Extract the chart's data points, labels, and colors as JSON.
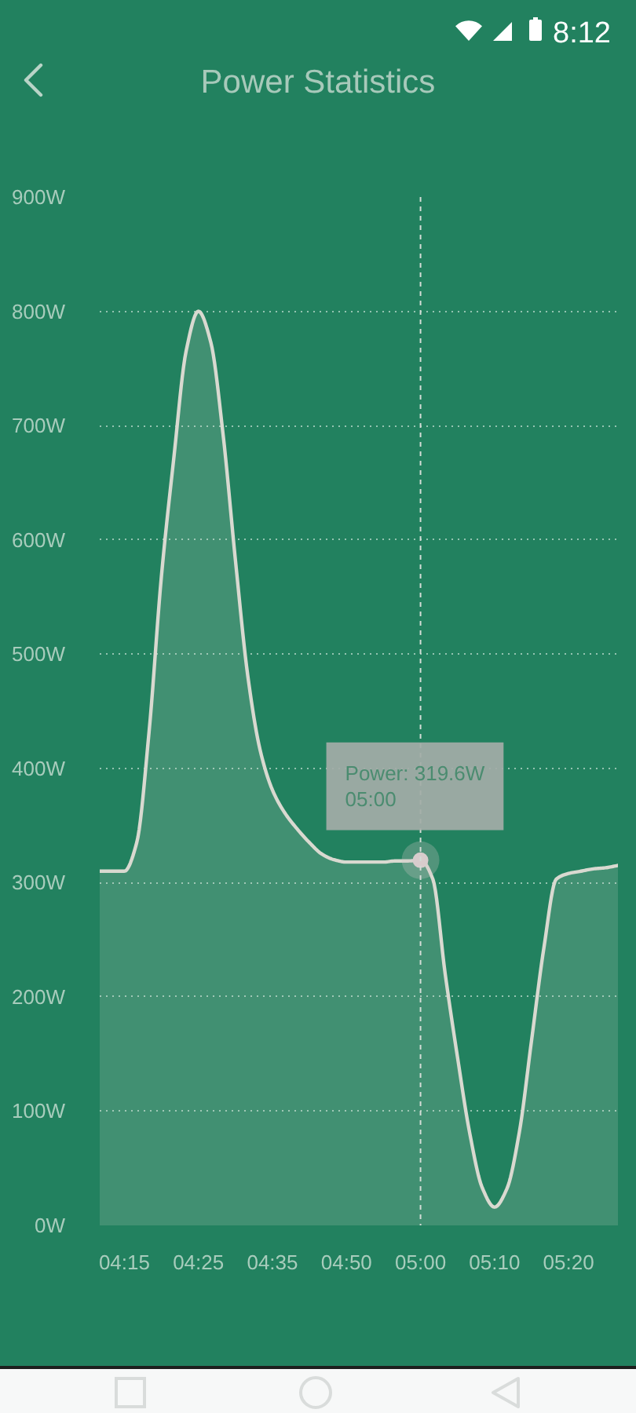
{
  "chart_data": {
    "type": "area",
    "title": "Power Statistics",
    "categories": [
      null,
      null,
      "04:15",
      null,
      null,
      null,
      null,
      null,
      "04:25",
      null,
      null,
      null,
      null,
      null,
      "04:35",
      null,
      null,
      null,
      null,
      null,
      "04:50",
      null,
      null,
      null,
      null,
      null,
      "05:00",
      null,
      null,
      null,
      null,
      null,
      "05:10",
      null,
      null,
      null,
      null,
      null,
      "05:20",
      null,
      null,
      null,
      null
    ],
    "series": [
      {
        "color": "#d9d9d0",
        "values": [
          310,
          310,
          310,
          335,
          432,
          568,
          671,
          765,
          800,
          773,
          692,
          582,
          481,
          416,
          381,
          361,
          347,
          335,
          325,
          320,
          318,
          318,
          318,
          318,
          319,
          319,
          319.6,
          303,
          220,
          147,
          80,
          33,
          16,
          32,
          81,
          162,
          243,
          303,
          308,
          310,
          312,
          313,
          315
        ]
      }
    ],
    "ylim": [
      0,
      900
    ],
    "yticks": [
      {
        "value": 0,
        "label": "0W"
      },
      {
        "value": 100,
        "label": "100W"
      },
      {
        "value": 200,
        "label": "200W"
      },
      {
        "value": 300,
        "label": "300W"
      },
      {
        "value": 400,
        "label": "400W"
      },
      {
        "value": 500,
        "label": "500W"
      },
      {
        "value": 600,
        "label": "600W"
      },
      {
        "value": 700,
        "label": "700W"
      },
      {
        "value": 800,
        "label": "800W"
      },
      {
        "value": 900,
        "label": "900W"
      }
    ],
    "grid": "y",
    "ref_lines": [
      {
        "axis": "x",
        "value": "05:00",
        "color": "#d3dcd6",
        "line_style": "dashed"
      }
    ],
    "annotations": [
      "8:12",
      {
        "text": "Power: 319.6W\n05:00",
        "x": "05:00",
        "y": 319.6
      }
    ]
  }
}
